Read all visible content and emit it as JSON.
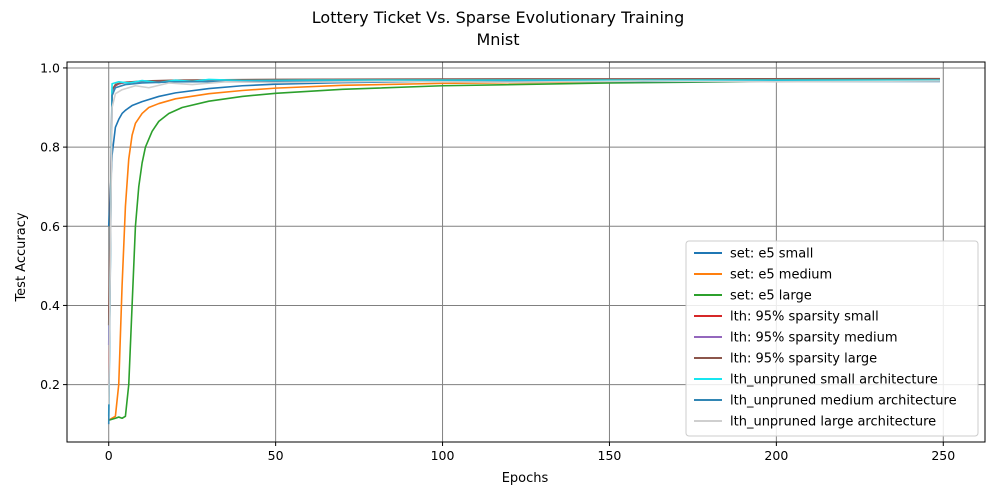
{
  "chart_data": {
    "type": "line",
    "title": "Lottery Ticket Vs. Sparse Evolutionary Training",
    "subtitle": "Mnist",
    "xlabel": "Epochs",
    "ylabel": "Test Accuracy",
    "xlim": [
      -12.5,
      262.5
    ],
    "ylim": [
      0.055,
      1.015
    ],
    "x_ticks": [
      0,
      50,
      100,
      150,
      200,
      250
    ],
    "y_ticks": [
      0.2,
      0.4,
      0.6,
      0.8,
      1.0
    ],
    "grid": true,
    "legend_position": "lower-right",
    "series": [
      {
        "name": "set: e5 small",
        "color": "#1f77b4",
        "width": 1.6,
        "points": [
          [
            0,
            0.6
          ],
          [
            1,
            0.78
          ],
          [
            2,
            0.85
          ],
          [
            3,
            0.87
          ],
          [
            4,
            0.885
          ],
          [
            5,
            0.893
          ],
          [
            7,
            0.905
          ],
          [
            10,
            0.915
          ],
          [
            15,
            0.928
          ],
          [
            20,
            0.937
          ],
          [
            30,
            0.948
          ],
          [
            40,
            0.955
          ],
          [
            50,
            0.959
          ],
          [
            70,
            0.963
          ],
          [
            100,
            0.966
          ],
          [
            150,
            0.968
          ],
          [
            200,
            0.969
          ],
          [
            249,
            0.97
          ]
        ]
      },
      {
        "name": "set: e5 medium",
        "color": "#ff7f0e",
        "width": 1.6,
        "points": [
          [
            0,
            0.11
          ],
          [
            1,
            0.115
          ],
          [
            2,
            0.12
          ],
          [
            3,
            0.2
          ],
          [
            4,
            0.45
          ],
          [
            5,
            0.65
          ],
          [
            6,
            0.77
          ],
          [
            7,
            0.83
          ],
          [
            8,
            0.86
          ],
          [
            10,
            0.885
          ],
          [
            12,
            0.9
          ],
          [
            15,
            0.91
          ],
          [
            20,
            0.922
          ],
          [
            30,
            0.935
          ],
          [
            40,
            0.943
          ],
          [
            50,
            0.949
          ],
          [
            70,
            0.956
          ],
          [
            100,
            0.961
          ],
          [
            150,
            0.965
          ],
          [
            200,
            0.967
          ],
          [
            249,
            0.968
          ]
        ]
      },
      {
        "name": "set: e5 large",
        "color": "#2ca02c",
        "width": 1.6,
        "points": [
          [
            0,
            0.11
          ],
          [
            2,
            0.115
          ],
          [
            3,
            0.118
          ],
          [
            4,
            0.115
          ],
          [
            5,
            0.12
          ],
          [
            6,
            0.2
          ],
          [
            7,
            0.4
          ],
          [
            8,
            0.6
          ],
          [
            9,
            0.7
          ],
          [
            10,
            0.76
          ],
          [
            11,
            0.8
          ],
          [
            13,
            0.84
          ],
          [
            15,
            0.865
          ],
          [
            18,
            0.885
          ],
          [
            22,
            0.9
          ],
          [
            30,
            0.916
          ],
          [
            40,
            0.928
          ],
          [
            50,
            0.936
          ],
          [
            70,
            0.946
          ],
          [
            100,
            0.955
          ],
          [
            150,
            0.962
          ],
          [
            200,
            0.966
          ],
          [
            249,
            0.968
          ]
        ]
      },
      {
        "name": "lth: 95% sparsity small",
        "color": "#d62728",
        "width": 1.6,
        "points": [
          [
            0,
            0.2
          ],
          [
            1,
            0.93
          ],
          [
            2,
            0.955
          ],
          [
            3,
            0.96
          ],
          [
            5,
            0.963
          ],
          [
            10,
            0.966
          ],
          [
            20,
            0.968
          ],
          [
            50,
            0.97
          ],
          [
            100,
            0.971
          ],
          [
            249,
            0.972
          ]
        ]
      },
      {
        "name": "lth: 95% sparsity medium",
        "color": "#9467bd",
        "width": 1.6,
        "points": [
          [
            0,
            0.3
          ],
          [
            1,
            0.94
          ],
          [
            2,
            0.957
          ],
          [
            4,
            0.962
          ],
          [
            10,
            0.966
          ],
          [
            20,
            0.968
          ],
          [
            50,
            0.97
          ],
          [
            100,
            0.971
          ],
          [
            249,
            0.972
          ]
        ]
      },
      {
        "name": "lth: 95% sparsity large",
        "color": "#8c564b",
        "width": 1.6,
        "points": [
          [
            0,
            0.35
          ],
          [
            1,
            0.945
          ],
          [
            2,
            0.958
          ],
          [
            4,
            0.963
          ],
          [
            10,
            0.967
          ],
          [
            20,
            0.969
          ],
          [
            50,
            0.971
          ],
          [
            100,
            0.972
          ],
          [
            249,
            0.973
          ]
        ]
      },
      {
        "name": "lth_unpruned small architecture",
        "color": "#17e6f0",
        "width": 1.6,
        "points": [
          [
            0,
            0.12
          ],
          [
            1,
            0.96
          ],
          [
            3,
            0.965
          ],
          [
            6,
            0.962
          ],
          [
            10,
            0.968
          ],
          [
            15,
            0.963
          ],
          [
            20,
            0.969
          ],
          [
            25,
            0.966
          ],
          [
            30,
            0.971
          ],
          [
            40,
            0.968
          ],
          [
            60,
            0.969
          ],
          [
            100,
            0.969
          ],
          [
            150,
            0.969
          ],
          [
            200,
            0.969
          ],
          [
            249,
            0.969
          ]
        ]
      },
      {
        "name": "lth_unpruned medium architecture",
        "color": "#3286b4",
        "width": 1.6,
        "points": [
          [
            0,
            0.1
          ],
          [
            1,
            0.93
          ],
          [
            2,
            0.95
          ],
          [
            5,
            0.958
          ],
          [
            10,
            0.962
          ],
          [
            20,
            0.965
          ],
          [
            50,
            0.966
          ],
          [
            100,
            0.966
          ],
          [
            249,
            0.966
          ]
        ]
      },
      {
        "name": "lth_unpruned large architecture",
        "color": "#cfcfcf",
        "width": 1.6,
        "points": [
          [
            0,
            0.15
          ],
          [
            1,
            0.9
          ],
          [
            2,
            0.935
          ],
          [
            4,
            0.945
          ],
          [
            8,
            0.955
          ],
          [
            12,
            0.95
          ],
          [
            18,
            0.962
          ],
          [
            25,
            0.958
          ],
          [
            35,
            0.965
          ],
          [
            50,
            0.963
          ],
          [
            80,
            0.966
          ],
          [
            120,
            0.964
          ],
          [
            160,
            0.967
          ],
          [
            200,
            0.965
          ],
          [
            249,
            0.967
          ]
        ]
      }
    ]
  }
}
